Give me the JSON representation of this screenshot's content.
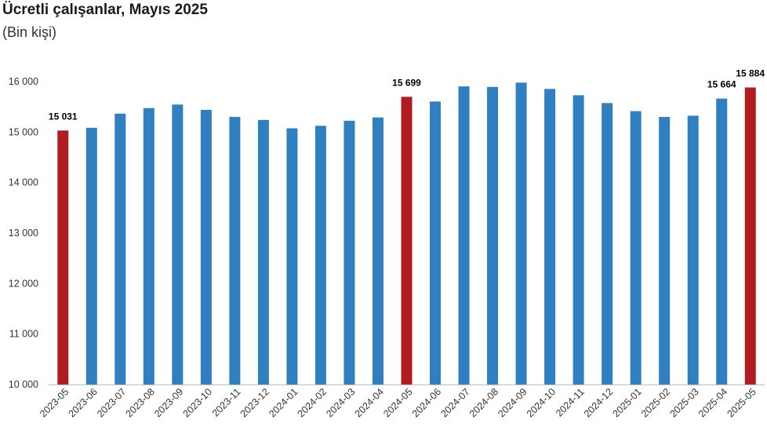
{
  "chart_data": {
    "type": "bar",
    "title": "Ücretli çalışanlar, Mayıs 2025",
    "subtitle": "(Bin kişi)",
    "xlabel": "",
    "ylabel": "",
    "ylim": [
      10000,
      16000
    ],
    "yticks": [
      "10 000",
      "11 000",
      "12 000",
      "13 000",
      "14 000",
      "15 000",
      "16 000"
    ],
    "ytick_values": [
      10000,
      11000,
      12000,
      13000,
      14000,
      15000,
      16000
    ],
    "grid": false,
    "categories": [
      "2023-05",
      "2023-06",
      "2023-07",
      "2023-08",
      "2023-09",
      "2023-10",
      "2023-11",
      "2023-12",
      "2024-01",
      "2024-02",
      "2024-03",
      "2024-04",
      "2024-05",
      "2024-06",
      "2024-07",
      "2024-08",
      "2024-09",
      "2024-10",
      "2024-11",
      "2024-12",
      "2025-01",
      "2025-02",
      "2025-03",
      "2025-04",
      "2025-05"
    ],
    "values": [
      15031,
      15085,
      15365,
      15475,
      15545,
      15440,
      15300,
      15240,
      15075,
      15125,
      15225,
      15290,
      15699,
      15605,
      15905,
      15895,
      15980,
      15855,
      15730,
      15575,
      15415,
      15300,
      15325,
      15664,
      15884
    ],
    "highlight_categories": [
      "2023-05",
      "2024-05",
      "2025-05"
    ],
    "data_labels": [
      {
        "category": "2023-05",
        "text": "15 031"
      },
      {
        "category": "2024-05",
        "text": "15 699"
      },
      {
        "category": "2025-04",
        "text": "15 664"
      },
      {
        "category": "2025-05",
        "text": "15 884"
      }
    ],
    "colors": {
      "bar": "#2f7fc1",
      "highlight": "#b01c20"
    }
  }
}
